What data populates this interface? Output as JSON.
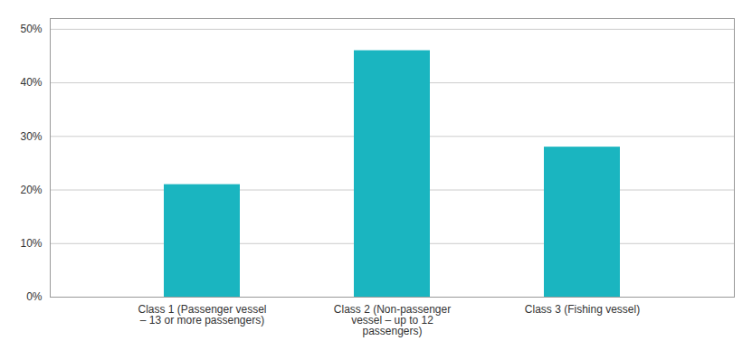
{
  "chart_data": {
    "type": "bar",
    "categories": [
      "Class 1 (Passenger vessel\n– 13 or more passengers)",
      "Class 2 (Non-passenger\nvessel – up to 12\npassengers)",
      "Class 3 (Fishing vessel)"
    ],
    "values": [
      0.21,
      0.46,
      0.28
    ],
    "color": "#1ab5c0",
    "ylim": [
      0,
      0.52
    ],
    "yticks": [
      {
        "value": 0.0,
        "label": "0%"
      },
      {
        "value": 0.1,
        "label": "10%"
      },
      {
        "value": 0.2,
        "label": "20%"
      },
      {
        "value": 0.3,
        "label": "30%"
      },
      {
        "value": 0.4,
        "label": "40%"
      },
      {
        "value": 0.5,
        "label": "50%"
      }
    ],
    "grid": true
  }
}
